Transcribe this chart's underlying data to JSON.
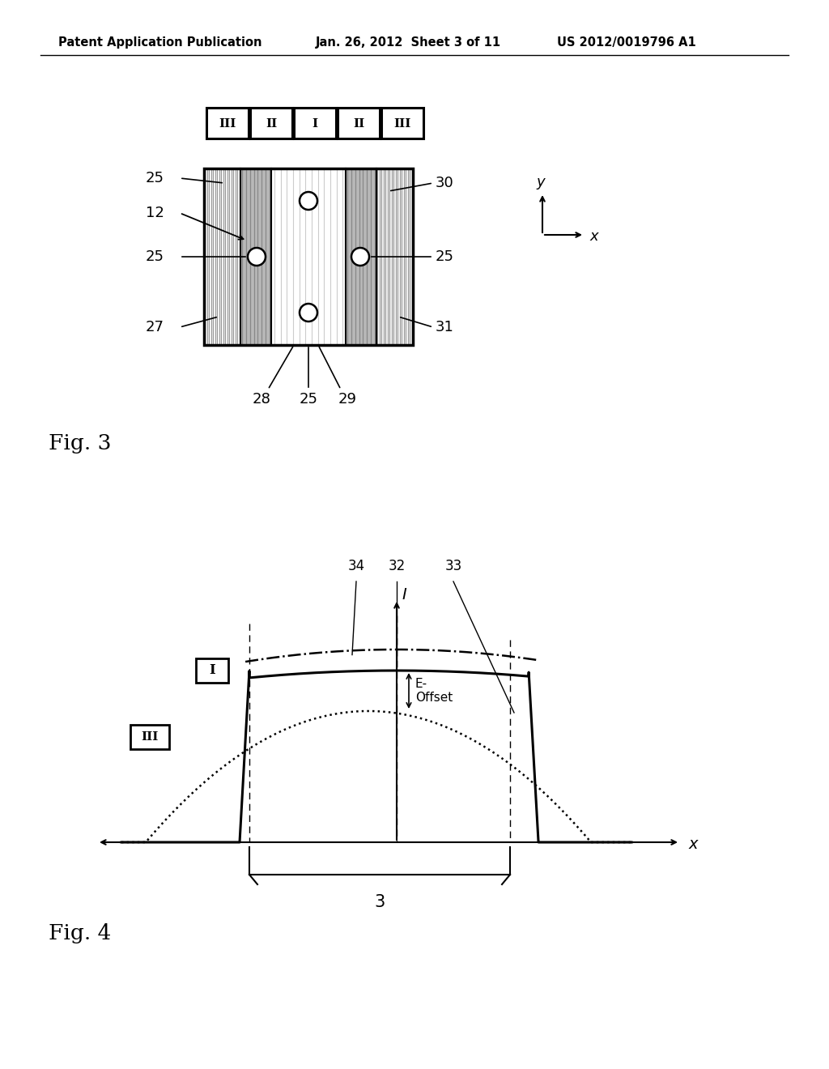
{
  "header_left": "Patent Application Publication",
  "header_mid": "Jan. 26, 2012  Sheet 3 of 11",
  "header_right": "US 2012/0019796 A1",
  "fig3_label": "Fig. 3",
  "fig4_label": "Fig. 4",
  "roman_labels": [
    "III",
    "II",
    "I",
    "II",
    "III"
  ],
  "bg_color": "#ffffff"
}
